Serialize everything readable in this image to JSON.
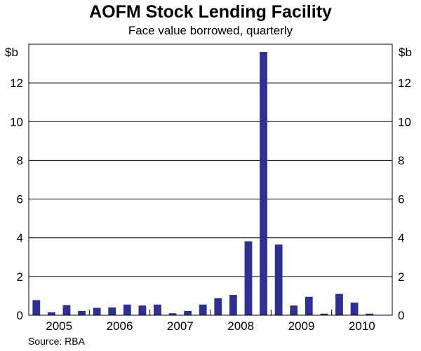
{
  "chart_data": {
    "type": "bar",
    "title": "AOFM Stock Lending Facility",
    "subtitle": "Face value borrowed, quarterly",
    "ylabel_left": "$b",
    "ylabel_right": "$b",
    "ylim": [
      0,
      14
    ],
    "yticks": [
      0,
      2,
      4,
      6,
      8,
      10,
      12
    ],
    "year_labels": [
      "2005",
      "2006",
      "2007",
      "2008",
      "2009",
      "2010"
    ],
    "categories": [
      "2005 Q1",
      "2005 Q2",
      "2005 Q3",
      "2005 Q4",
      "2006 Q1",
      "2006 Q2",
      "2006 Q3",
      "2006 Q4",
      "2007 Q1",
      "2007 Q2",
      "2007 Q3",
      "2007 Q4",
      "2008 Q1",
      "2008 Q2",
      "2008 Q3",
      "2008 Q4",
      "2009 Q1",
      "2009 Q2",
      "2009 Q3",
      "2009 Q4",
      "2010 Q1",
      "2010 Q2",
      "2010 Q3",
      "2010 Q4"
    ],
    "values": [
      0.78,
      0.15,
      0.52,
      0.22,
      0.38,
      0.4,
      0.55,
      0.5,
      0.55,
      0.1,
      0.22,
      0.55,
      0.88,
      1.05,
      3.82,
      13.6,
      3.65,
      0.5,
      0.95,
      0.08,
      1.1,
      0.65,
      0.08,
      0
    ],
    "bar_color": "#2e3192",
    "grid": true,
    "source": "Source: RBA"
  }
}
